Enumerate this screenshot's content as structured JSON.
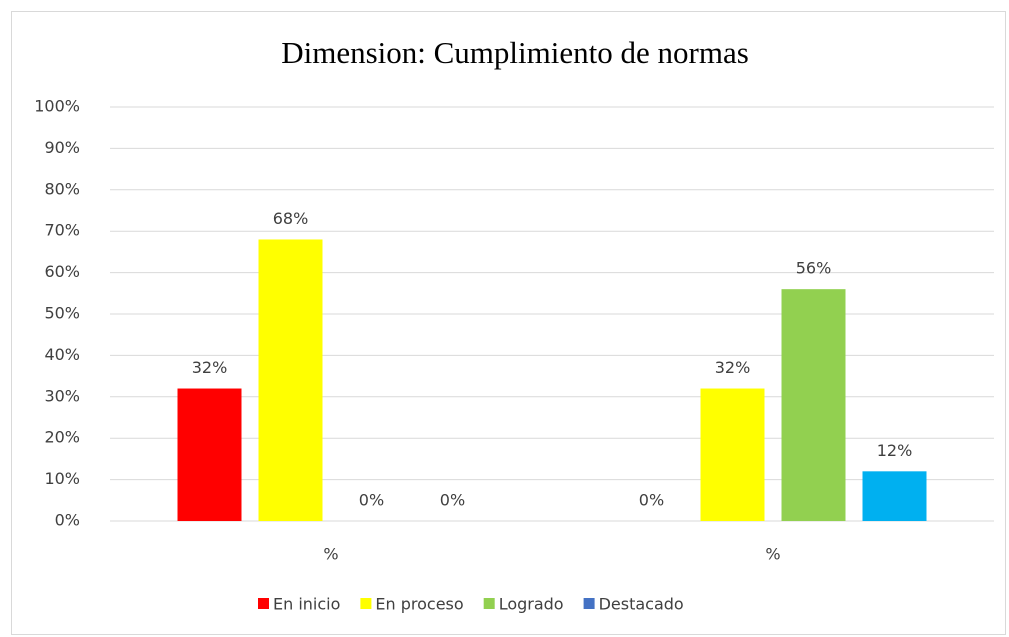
{
  "chart_data": {
    "type": "bar",
    "title": "Dimension: Cumplimiento de normas",
    "categories": [
      "%",
      "%"
    ],
    "series": [
      {
        "name": "En inicio",
        "color": "#FF0000",
        "values": [
          32,
          0
        ],
        "value_labels": [
          "32%",
          "0%"
        ]
      },
      {
        "name": "En proceso",
        "color": "#FFFF00",
        "values": [
          68,
          32
        ],
        "value_labels": [
          "68%",
          "32%"
        ]
      },
      {
        "name": "Logrado",
        "color": "#92D050",
        "values": [
          0,
          56
        ],
        "value_labels": [
          "0%",
          "56%"
        ]
      },
      {
        "name": "Destacado",
        "color": "#4472C4",
        "bar_color": "#00B0F0",
        "values": [
          0,
          12
        ],
        "value_labels": [
          "0%",
          "12%"
        ]
      }
    ],
    "ylim": [
      0,
      100
    ],
    "yticks": [
      {
        "value": 0,
        "label": "0%"
      },
      {
        "value": 10,
        "label": "10%"
      },
      {
        "value": 20,
        "label": "20%"
      },
      {
        "value": 30,
        "label": "30%"
      },
      {
        "value": 40,
        "label": "40%"
      },
      {
        "value": 50,
        "label": "50%"
      },
      {
        "value": 60,
        "label": "60%"
      },
      {
        "value": 70,
        "label": "70%"
      },
      {
        "value": 80,
        "label": "80%"
      },
      {
        "value": 90,
        "label": "90%"
      },
      {
        "value": 100,
        "label": "100%"
      }
    ],
    "grid": true,
    "legend": "bottom"
  }
}
